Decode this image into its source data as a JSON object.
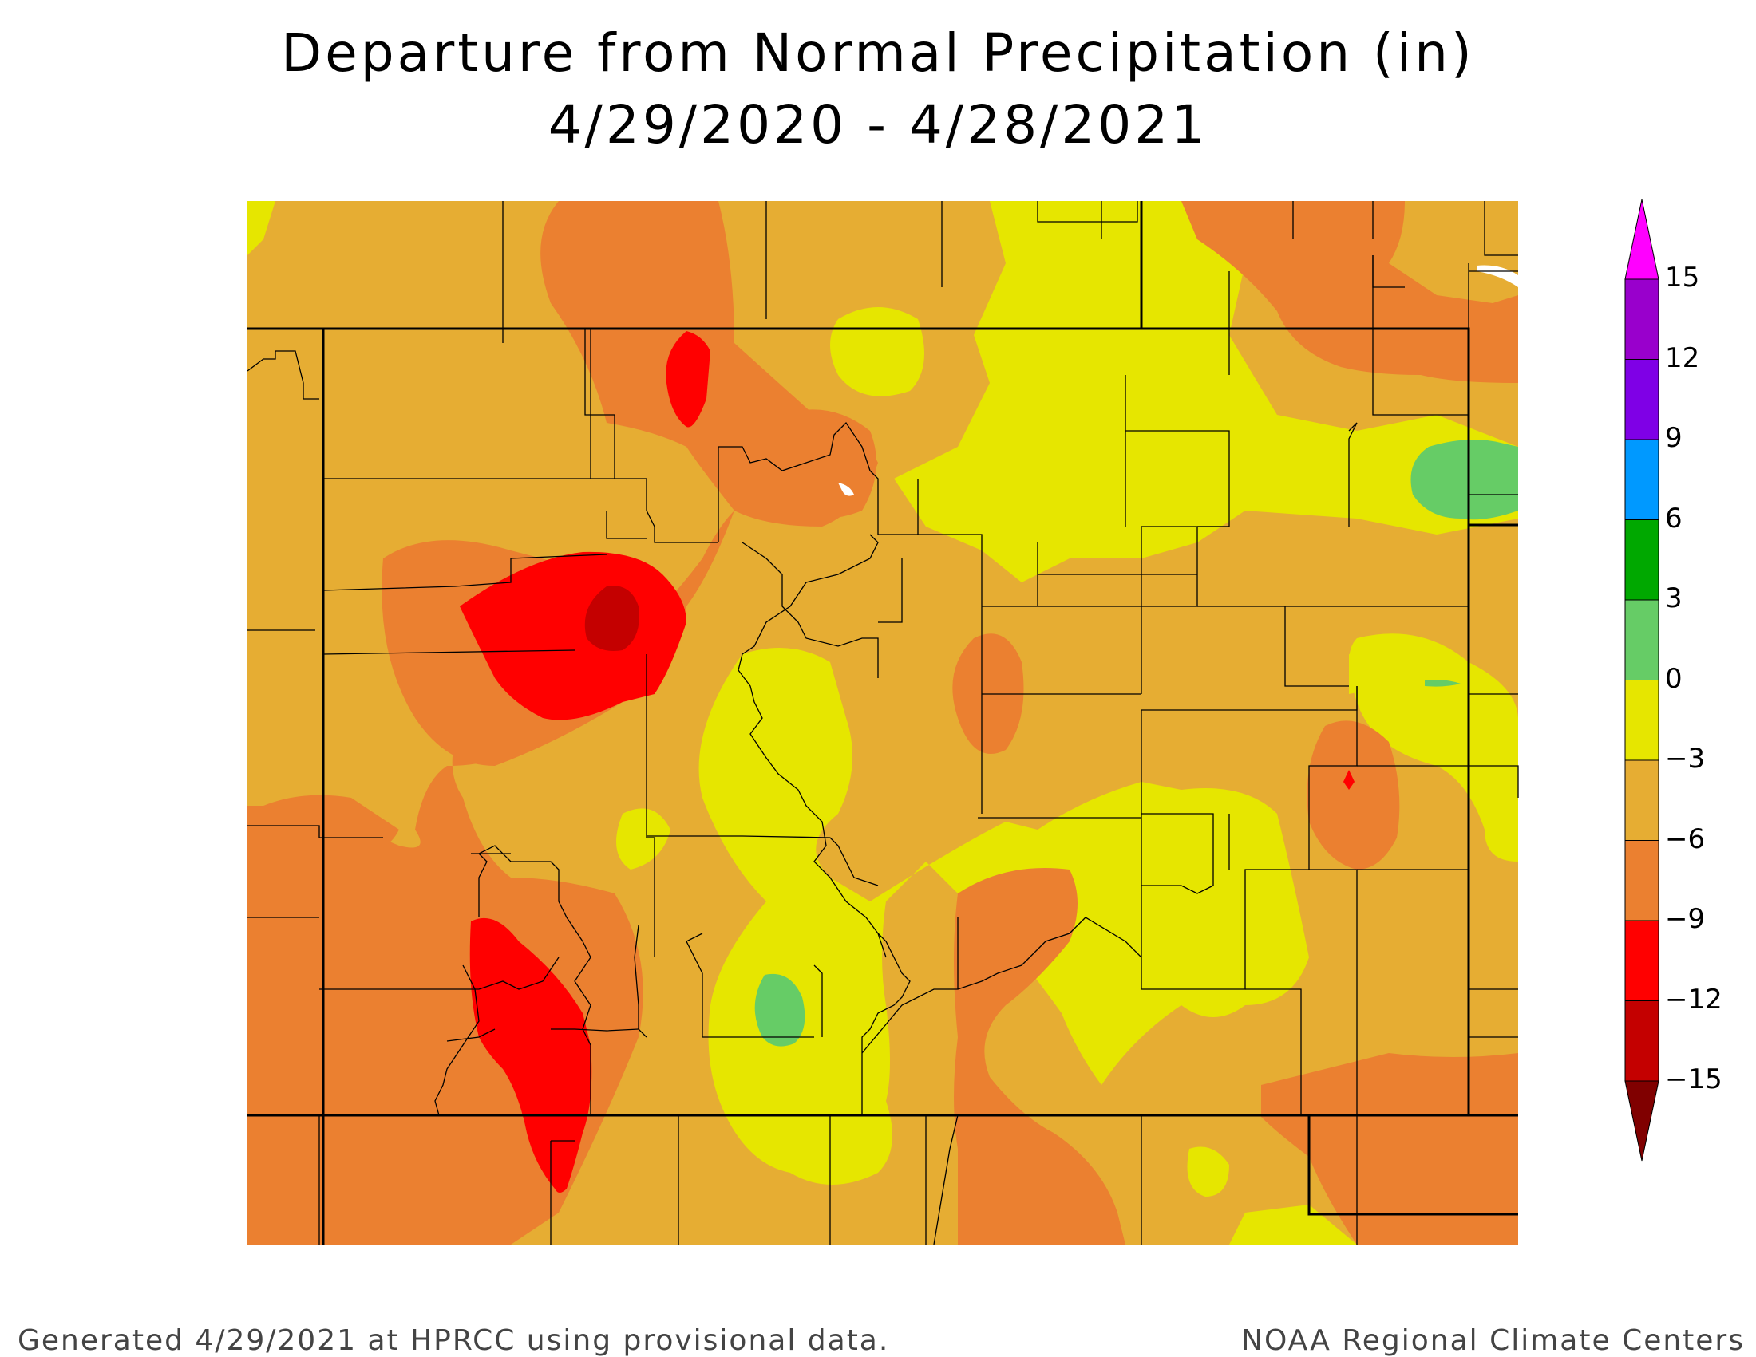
{
  "title": "Departure from Normal Precipitation (in)",
  "subtitle": "4/29/2020 - 4/28/2021",
  "legend": {
    "labels": [
      "15",
      "12",
      "9",
      "6",
      "3",
      "0",
      "−3",
      "−6",
      "−9",
      "−12",
      "−15"
    ],
    "colors": [
      "#ff00ff",
      "#9900cc",
      "#7f00e6",
      "#0099ff",
      "#00a800",
      "#66cc66",
      "#e6e600",
      "#e6ad33",
      "#eb8030",
      "#ff0000",
      "#c40000",
      "#800000"
    ]
  },
  "map": {
    "region": "Colorado",
    "colors": {
      "band_0_to_m3": "#e6e600",
      "band_m3_to_m6": "#e6ad33",
      "band_m6_to_m9": "#eb8030",
      "band_m9_to_m12": "#ff0000",
      "band_m12_to_m15": "#c40000",
      "band_0_to_3": "#66cc66"
    }
  },
  "footer": {
    "left": "Generated 4/29/2021 at HPRCC using provisional data.",
    "right": "NOAA Regional Climate Centers"
  }
}
